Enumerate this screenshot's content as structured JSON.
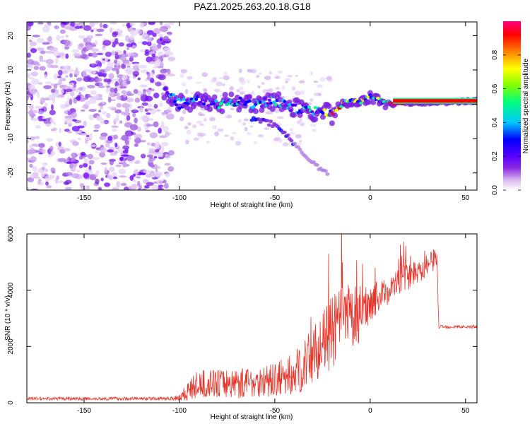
{
  "title": "PAZ1.2025.263.20.18.G18",
  "chart_data": [
    {
      "type": "heatmap",
      "xlabel": "Height of straight line (km)",
      "ylabel": "Frequency (Hz)",
      "xlim": [
        -180,
        56
      ],
      "ylim": [
        -25,
        24
      ],
      "xticks": [
        -150,
        -100,
        -50,
        0,
        50
      ],
      "yticks": [
        -20,
        -10,
        0,
        10,
        20
      ],
      "xticklabels": [
        "-150",
        "-100",
        "-50",
        "0",
        "50"
      ],
      "yticklabels": [
        "-20",
        "-10",
        "0",
        "10",
        "20"
      ],
      "noise_region_x": [
        -180,
        -100
      ],
      "ridge": {
        "x": [
          -108,
          -100,
          -90,
          -80,
          -70,
          -60,
          -50,
          -40,
          -30,
          -25,
          -20,
          -15,
          -10,
          -5,
          0,
          5,
          10,
          20,
          30,
          40,
          56
        ],
        "y": [
          4,
          0,
          1,
          0,
          1,
          0,
          1,
          -1,
          -2,
          -2,
          -3,
          0,
          1,
          1,
          2,
          1,
          0,
          0.5,
          0.5,
          0.5,
          1
        ]
      },
      "secondary_branch": {
        "x": [
          -62,
          -55,
          -50,
          -45,
          -42,
          -38,
          -34,
          -30,
          -25,
          -22
        ],
        "y": [
          -4,
          -5,
          -6,
          -8,
          -10,
          -13,
          -15,
          -17,
          -19,
          -21
        ]
      },
      "colorbar": {
        "label": "Normalized spectral amplitude",
        "range": [
          0,
          1
        ],
        "ticks": [
          0.0,
          0.2,
          0.4,
          0.6,
          0.8
        ],
        "ticklabels": [
          "0.0",
          "0.2",
          "0.4",
          "0.6",
          "0.8"
        ],
        "colors": [
          "#ffffff",
          "#d8b8f0",
          "#8a2be2",
          "#5a00ff",
          "#0000ff",
          "#00c8ff",
          "#00ff80",
          "#80ff00",
          "#ffff00",
          "#ff8000",
          "#ff0000",
          "#ff0080"
        ]
      }
    },
    {
      "type": "line",
      "xlabel": "Height of straight line (km)",
      "ylabel": "SNR (10 * v/v)",
      "xlim": [
        -180,
        56
      ],
      "ylim": [
        0,
        6000
      ],
      "xticks": [
        -150,
        -100,
        -50,
        0,
        50
      ],
      "yticks": [
        0,
        2000,
        4000,
        6000
      ],
      "xticklabels": [
        "-150",
        "-100",
        "-50",
        "0",
        "50"
      ],
      "yticklabels": [
        "0",
        "2000",
        "4000",
        "6000"
      ],
      "color": "#e8352b",
      "series": [
        {
          "name": "SNR",
          "x": [
            -180,
            -150,
            -120,
            -105,
            -100,
            -95,
            -90,
            -80,
            -70,
            -60,
            -50,
            -40,
            -35,
            -30,
            -25,
            -20,
            -15,
            -10,
            -5,
            0,
            5,
            10,
            15,
            20,
            25,
            30,
            34,
            35,
            36,
            40,
            45,
            50,
            56
          ],
          "y": [
            150,
            150,
            150,
            150,
            200,
            450,
            650,
            700,
            700,
            750,
            800,
            1000,
            1300,
            1700,
            2100,
            2500,
            2900,
            3000,
            3200,
            3600,
            3800,
            4000,
            4300,
            4500,
            4700,
            4900,
            5100,
            5200,
            2700,
            2700,
            2700,
            2700,
            2700
          ],
          "noise_amplitude": [
            60,
            60,
            60,
            60,
            150,
            400,
            500,
            500,
            550,
            550,
            600,
            800,
            900,
            1000,
            1100,
            1300,
            1300,
            1200,
            1000,
            700,
            500,
            500,
            500,
            500,
            450,
            400,
            400,
            400,
            60,
            60,
            60,
            60,
            60
          ]
        }
      ]
    }
  ]
}
